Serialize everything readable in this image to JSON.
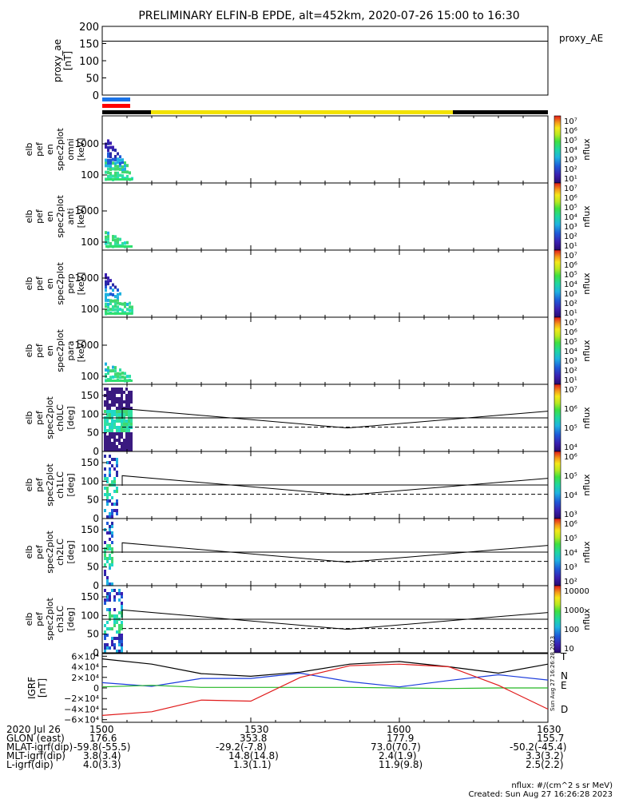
{
  "title": "PRELIMINARY ELFIN-B EPDE, alt=452km, 2020-07-26 15:00 to 16:30",
  "colors": {
    "ae_line": "#000000",
    "sci_bar": "#1a73e8",
    "fgm_bar": "#ff0000",
    "mode_bar": "#000000",
    "day_bar": "#f2e200",
    "grf_t": "#000000",
    "grf_n": "#1c3cdc",
    "grf_e": "#25b825",
    "grf_d": "#e01a1a"
  },
  "panels": {
    "ae": {
      "ylabel": [
        "proxy_ae",
        "[nT]"
      ],
      "yticks": [
        "200",
        "150",
        "100",
        "50",
        "0"
      ],
      "legend": "proxy_AE",
      "ylim": [
        0,
        200
      ],
      "value": 157
    },
    "spec": [
      {
        "name": "omni",
        "ylabel": [
          "elb",
          "pef",
          "en",
          "spec2plot",
          "omni",
          "[keV]"
        ],
        "yticks": [
          "1000",
          "100"
        ],
        "cb_ticks": [
          "10⁷",
          "10⁶",
          "10⁵",
          "10⁴",
          "10³",
          "10²",
          "10¹"
        ],
        "cb_label": "nflux"
      },
      {
        "name": "anti",
        "ylabel": [
          "elb",
          "pef",
          "en",
          "spec2plot",
          "anti",
          "[keV]"
        ],
        "yticks": [
          "1000",
          "100"
        ],
        "cb_ticks": [
          "10⁷",
          "10⁶",
          "10⁵",
          "10⁴",
          "10³",
          "10²",
          "10¹"
        ],
        "cb_label": "nflux"
      },
      {
        "name": "perp",
        "ylabel": [
          "elb",
          "pef",
          "en",
          "spec2plot",
          "perp",
          "[keV]"
        ],
        "yticks": [
          "1000",
          "100"
        ],
        "cb_ticks": [
          "10⁷",
          "10⁶",
          "10⁵",
          "10⁴",
          "10³",
          "10²",
          "10¹"
        ],
        "cb_label": "nflux"
      },
      {
        "name": "para",
        "ylabel": [
          "elb",
          "pef",
          "en",
          "spec2plot",
          "para",
          "[keV]"
        ],
        "yticks": [
          "1000",
          "100"
        ],
        "cb_ticks": [
          "10⁷",
          "10⁶",
          "10⁵",
          "10⁴",
          "10³",
          "10²",
          "10¹"
        ],
        "cb_label": "nflux"
      }
    ],
    "pa": [
      {
        "name": "ch0LC",
        "ylabel": [
          "elb",
          "pef",
          "spec2plot",
          "ch0LC",
          "[deg]"
        ],
        "yticks": [
          "150",
          "100",
          "50",
          "0"
        ],
        "cb_ticks": [
          "10⁷",
          "10⁶",
          "10⁵",
          "10⁴"
        ],
        "cb_label": "nflux"
      },
      {
        "name": "ch1LC",
        "ylabel": [
          "elb",
          "pef",
          "spec2plot",
          "ch1LC",
          "[deg]"
        ],
        "yticks": [
          "150",
          "100",
          "50",
          "0"
        ],
        "cb_ticks": [
          "10⁶",
          "10⁵",
          "10⁴",
          "10³"
        ],
        "cb_label": "nflux"
      },
      {
        "name": "ch2LC",
        "ylabel": [
          "elb",
          "pef",
          "spec2plot",
          "ch2LC",
          "[deg]"
        ],
        "yticks": [
          "150",
          "100",
          "50",
          "0"
        ],
        "cb_ticks": [
          "10⁶",
          "10⁵",
          "10⁴",
          "10³",
          "10²"
        ],
        "cb_label": "nflux"
      },
      {
        "name": "ch3LC",
        "ylabel": [
          "elb",
          "pef",
          "spec2plot",
          "ch3LC",
          "[deg]"
        ],
        "yticks": [
          "150",
          "100",
          "50",
          "0"
        ],
        "cb_ticks": [
          "10000",
          "1000",
          "100",
          "10"
        ],
        "cb_label": "nflux"
      }
    ],
    "grf": {
      "ylabel": [
        "IGRF",
        "[nT]"
      ],
      "yticks": [
        "6×10⁴",
        "4×10⁴",
        "2×10⁴",
        "0",
        "−2×10⁴",
        "−4×10⁴",
        "−6×10⁴"
      ],
      "legend": [
        "T",
        "N",
        "E",
        "D"
      ]
    }
  },
  "chart_data": {
    "type": "line",
    "x_ticks": [
      "1500",
      "1530",
      "1600",
      "1630"
    ],
    "xlim": [
      "15:00",
      "16:30"
    ],
    "series": [
      {
        "name": "proxy_AE",
        "x": [
          "15:00",
          "16:30"
        ],
        "values": [
          157,
          157
        ]
      },
      {
        "name": "T",
        "x": [
          "15:00",
          "15:10",
          "15:20",
          "15:30",
          "15:40",
          "15:50",
          "16:00",
          "16:10",
          "16:20",
          "16:30"
        ],
        "values": [
          55000,
          45000,
          27000,
          22000,
          30000,
          45000,
          50000,
          40000,
          28000,
          45000
        ]
      },
      {
        "name": "N",
        "x": [
          "15:00",
          "15:10",
          "15:20",
          "15:30",
          "15:40",
          "15:50",
          "16:00",
          "16:10",
          "16:20",
          "16:30"
        ],
        "values": [
          10000,
          3000,
          18000,
          18000,
          28000,
          12000,
          2000,
          14000,
          25000,
          15000
        ]
      },
      {
        "name": "E",
        "x": [
          "15:00",
          "15:10",
          "15:20",
          "15:30",
          "15:40",
          "15:50",
          "16:00",
          "16:10",
          "16:20",
          "16:30"
        ],
        "values": [
          2000,
          5000,
          1000,
          1000,
          1000,
          1000,
          0,
          -1000,
          0,
          0
        ]
      },
      {
        "name": "D",
        "x": [
          "15:00",
          "15:10",
          "15:20",
          "15:30",
          "15:40",
          "15:50",
          "16:00",
          "16:10",
          "16:20",
          "16:30"
        ],
        "values": [
          -52000,
          -45000,
          -23000,
          -25000,
          20000,
          42000,
          45000,
          40000,
          5000,
          -40000
        ]
      }
    ]
  },
  "footer": {
    "rows": [
      {
        "label": "2020 Jul 26",
        "v": [
          "1500",
          "1530",
          "1600",
          "1630"
        ]
      },
      {
        "label": "GLON (east)",
        "v": [
          "176.6",
          "353.8",
          "177.9",
          "155.7"
        ]
      },
      {
        "label": "MLAT-igrf(dip)",
        "v": [
          "-59.8(-55.5)",
          "-29.2(-7.8)",
          "73.0(70.7)",
          "-50.2(-45.4)"
        ]
      },
      {
        "label": "MLT-igrf(dip)",
        "v": [
          "3.8(3.4)",
          "14.8(14.8)",
          "2.4(1.9)",
          "3.3(3.2)"
        ]
      },
      {
        "label": "L-igrf(dip)",
        "v": [
          "4.0(3.3)",
          "1.3(1.1)",
          "11.9(9.8)",
          "2.5(2.2)"
        ]
      }
    ],
    "units": "nflux: #/(cm^2 s sr MeV)",
    "created": "Created: Sun Aug 27 16:26:28 2023",
    "stamp": "Sun Aug 27 16:26:28 2023"
  }
}
